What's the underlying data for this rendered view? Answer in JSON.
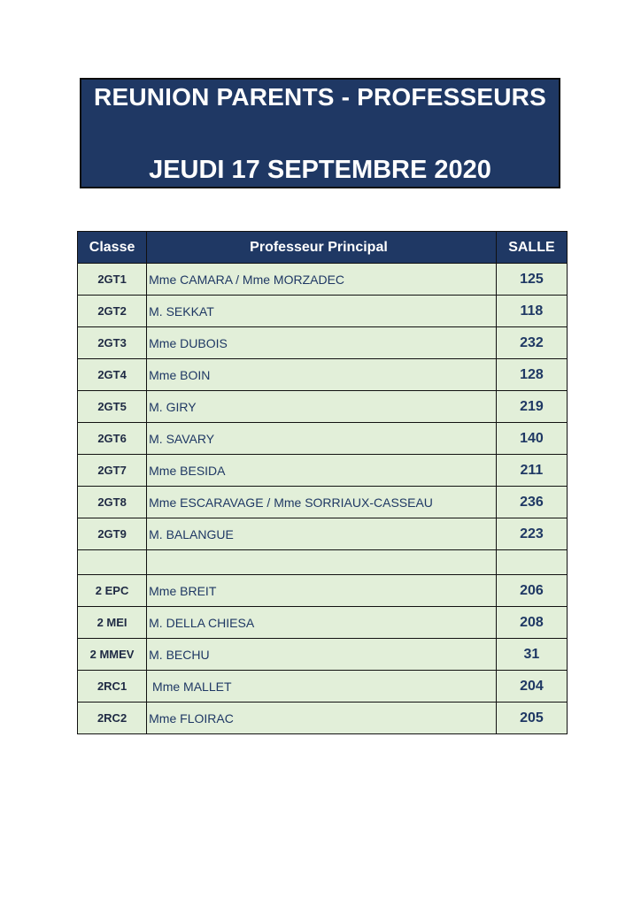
{
  "header": {
    "line1": "REUNION PARENTS - PROFESSEURS",
    "line2": "JEUDI 17 SEPTEMBRE 2020"
  },
  "table": {
    "columns": [
      "Classe",
      "Professeur Principal",
      "SALLE"
    ],
    "rows": [
      {
        "classe": "2GT1",
        "prof": "Mme CAMARA  / Mme MORZADEC",
        "salle": "125"
      },
      {
        "classe": "2GT2",
        "prof": "M. SEKKAT",
        "salle": "118"
      },
      {
        "classe": "2GT3",
        "prof": "Mme DUBOIS",
        "salle": "232"
      },
      {
        "classe": "2GT4",
        "prof": "Mme BOIN",
        "salle": "128"
      },
      {
        "classe": "2GT5",
        "prof": "M. GIRY",
        "salle": "219"
      },
      {
        "classe": "2GT6",
        "prof": "M. SAVARY",
        "salle": "140"
      },
      {
        "classe": "2GT7",
        "prof": "Mme BESIDA",
        "salle": "211"
      },
      {
        "classe": "2GT8",
        "prof": "Mme ESCARAVAGE / Mme SORRIAUX-CASSEAU",
        "salle": "236"
      },
      {
        "classe": "2GT9",
        "prof": "M. BALANGUE",
        "salle": "223"
      },
      {
        "classe": "",
        "prof": "",
        "salle": ""
      },
      {
        "classe": "2 EPC",
        "prof": "Mme BREIT",
        "salle": "206"
      },
      {
        "classe": "2 MEI",
        "prof": "M. DELLA CHIESA",
        "salle": "208"
      },
      {
        "classe": "2 MMEV",
        "prof": "M. BECHU",
        "salle": "31"
      },
      {
        "classe": "2RC1",
        "prof": " Mme MALLET",
        "salle": "204"
      },
      {
        "classe": "2RC2",
        "prof": "Mme FLOIRAC",
        "salle": "205"
      }
    ]
  }
}
